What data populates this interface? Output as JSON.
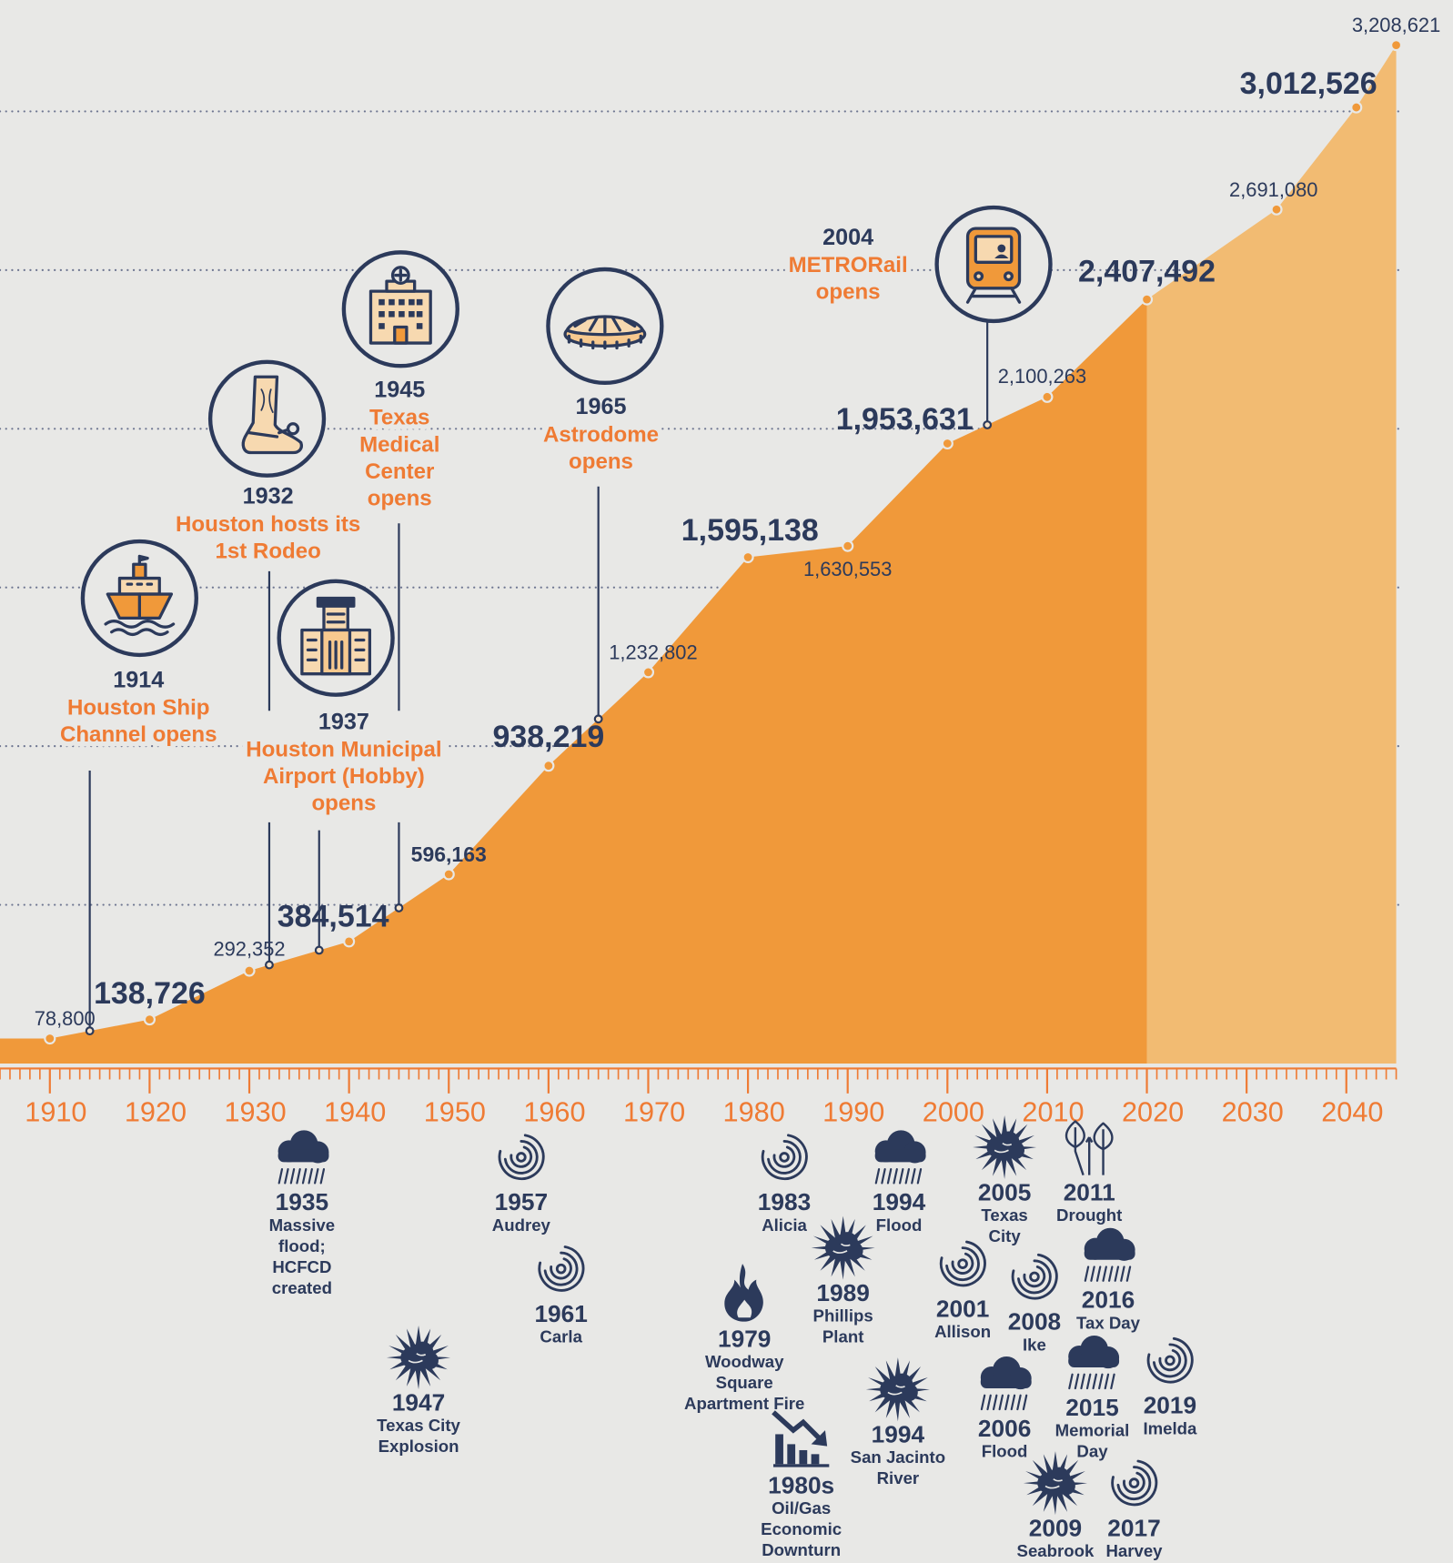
{
  "chart_data": {
    "type": "area",
    "x": [
      1910,
      1920,
      1930,
      1940,
      1950,
      1960,
      1970,
      1980,
      1990,
      2000,
      2010,
      2020,
      2033,
      2041,
      2045
    ],
    "values": [
      78800,
      138726,
      292352,
      384514,
      596163,
      938219,
      1232802,
      1595138,
      1630553,
      1953631,
      2100263,
      2407492,
      2691080,
      3012526,
      3208621
    ],
    "value_labels": [
      "78,800",
      "138,726",
      "292,352",
      "384,514",
      "596,163",
      "938,219",
      "1,232,802",
      "1,595,138",
      "1,630,553",
      "1,953,631",
      "2,100,263",
      "2,407,492",
      "2,691,080",
      "3,012,526",
      "3,208,621"
    ],
    "color": "#f0993a",
    "projection_color": "#f2bb72",
    "projection_from": 2020,
    "xlim": [
      1905,
      2045
    ],
    "xticks": [
      1910,
      1920,
      1930,
      1940,
      1950,
      1960,
      1970,
      1980,
      1990,
      2000,
      2010,
      2020,
      2030,
      2040
    ],
    "ylim": [
      0,
      3300000
    ],
    "yticks": [
      500000,
      1000000,
      1500000,
      2000000,
      2500000,
      3000000
    ],
    "grid": true,
    "milestones": [
      {
        "year": 1914,
        "label": [
          "Houston Ship",
          "Channel opens"
        ],
        "icon": "ship"
      },
      {
        "year": 1932,
        "label": [
          "Houston hosts its",
          "1st Rodeo"
        ],
        "icon": "boot"
      },
      {
        "year": 1937,
        "label": [
          "Houston Municipal",
          "Airport (Hobby)",
          "opens"
        ],
        "icon": "airport"
      },
      {
        "year": 1945,
        "label": [
          "Texas",
          "Medical",
          "Center",
          "opens"
        ],
        "icon": "hospital"
      },
      {
        "year": 1965,
        "label": [
          "Astrodome",
          "opens"
        ],
        "icon": "dome"
      },
      {
        "year": 2004,
        "label": [
          "METRORail",
          "opens"
        ],
        "icon": "train"
      }
    ],
    "disasters": [
      {
        "year": "1935",
        "label": [
          "Massive",
          "flood;",
          "HCFCD",
          "created"
        ],
        "icon": "rain"
      },
      {
        "year": "1947",
        "label": [
          "Texas City",
          "Explosion"
        ],
        "icon": "burst"
      },
      {
        "year": "1957",
        "label": [
          "Audrey"
        ],
        "icon": "hurricane"
      },
      {
        "year": "1961",
        "label": [
          "Carla"
        ],
        "icon": "hurricane"
      },
      {
        "year": "1979",
        "label": [
          "Woodway",
          "Square",
          "Apartment Fire"
        ],
        "icon": "fire"
      },
      {
        "year": "1980s",
        "label": [
          "Oil/Gas",
          "Economic",
          "Downturn"
        ],
        "icon": "decline"
      },
      {
        "year": "1983",
        "label": [
          "Alicia"
        ],
        "icon": "hurricane"
      },
      {
        "year": "1989",
        "label": [
          "Phillips",
          "Plant"
        ],
        "icon": "burst"
      },
      {
        "year": "1994",
        "label": [
          "Flood"
        ],
        "icon": "rain"
      },
      {
        "year": "1994",
        "label": [
          "San Jacinto",
          "River"
        ],
        "icon": "burst"
      },
      {
        "year": "2001",
        "label": [
          "Allison"
        ],
        "icon": "hurricane"
      },
      {
        "year": "2005",
        "label": [
          "Texas",
          "City"
        ],
        "icon": "burst"
      },
      {
        "year": "2006",
        "label": [
          "Flood"
        ],
        "icon": "rain"
      },
      {
        "year": "2008",
        "label": [
          "Ike"
        ],
        "icon": "hurricane"
      },
      {
        "year": "2009",
        "label": [
          "Seabrook"
        ],
        "icon": "burst"
      },
      {
        "year": "2011",
        "label": [
          "Drought"
        ],
        "icon": "drought"
      },
      {
        "year": "2015",
        "label": [
          "Memorial",
          "Day"
        ],
        "icon": "rain"
      },
      {
        "year": "2016",
        "label": [
          "Tax Day"
        ],
        "icon": "rain"
      },
      {
        "year": "2017",
        "label": [
          "Harvey"
        ],
        "icon": "hurricane"
      },
      {
        "year": "2019",
        "label": [
          "Imelda"
        ],
        "icon": "hurricane"
      }
    ]
  }
}
